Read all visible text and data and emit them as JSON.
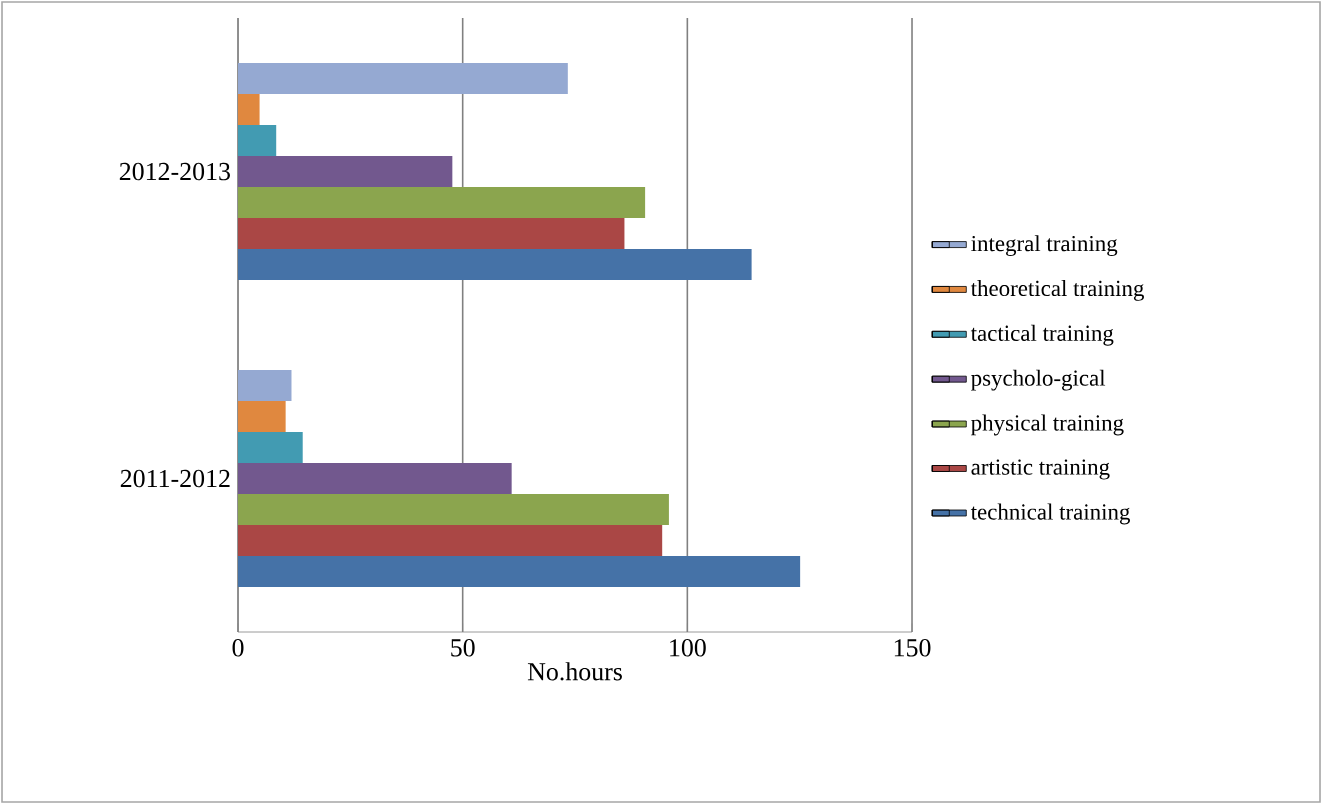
{
  "chart_data": {
    "type": "bar",
    "orientation": "horizontal",
    "xlabel": "No.hours",
    "categories": [
      "2012-2013",
      "2011-2012"
    ],
    "xlim": [
      0,
      150
    ],
    "xticks": [
      0,
      50,
      100,
      150
    ],
    "grid": "x",
    "legend": "right",
    "series": [
      {
        "name": "integral training",
        "color": "#95a9d2",
        "values": [
          73.4,
          11.9
        ]
      },
      {
        "name": "theoretical training",
        "color": "#e0883f",
        "values": [
          4.8,
          10.6
        ]
      },
      {
        "name": "tactical training",
        "color": "#429bb2",
        "values": [
          8.5,
          14.4
        ]
      },
      {
        "name": "psycholo-gical",
        "color": "#72588e",
        "values": [
          47.7,
          60.9
        ]
      },
      {
        "name": "physical training",
        "color": "#8ba54e",
        "values": [
          90.6,
          95.9
        ]
      },
      {
        "name": "artistic training",
        "color": "#aa4745",
        "values": [
          86,
          94.4
        ]
      },
      {
        "name": "technical training",
        "color": "#4572a7",
        "values": [
          114.3,
          125.1
        ]
      }
    ]
  }
}
